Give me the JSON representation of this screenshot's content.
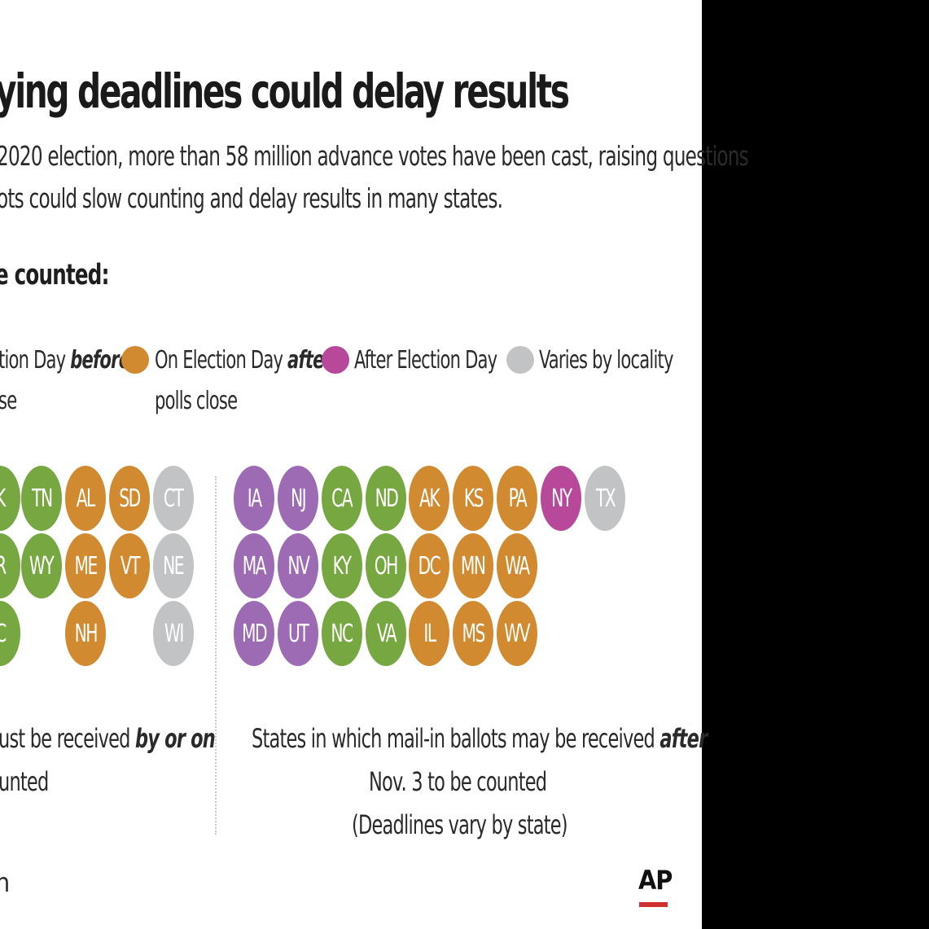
{
  "header": {
    "title": "ying deadlines could delay results",
    "subtitle_line1": "2020 election, more than 58 million advance votes have been cast, raising questions",
    "subtitle_line2": "ots could slow counting and delay results in many states.",
    "section_heading": "e counted:"
  },
  "legend": [
    {
      "line1_plain": "tion Day ",
      "line1_bold": "before",
      "line2": "se",
      "color": "#76a740"
    },
    {
      "line1_plain": "On Election Day ",
      "line1_bold": "after",
      "line2": "polls close",
      "color": "#d18a2f"
    },
    {
      "line1_plain": "After Election Day",
      "line1_bold": "",
      "line2": "",
      "color": "#b8489a"
    },
    {
      "line1_plain": "Varies by locality",
      "line1_bold": "",
      "line2": "",
      "color": "#c2c3c5"
    }
  ],
  "left_group": {
    "states": [
      "K",
      "TN",
      "AL",
      "SD",
      "CT",
      "R",
      "WY",
      "ME",
      "VT",
      "NE",
      "C",
      "NH",
      "WI"
    ],
    "caption_line1_plain": "ust be received ",
    "caption_line1_bold": "by or on",
    "caption_line2": "unted"
  },
  "right_group": {
    "states": [
      "IA",
      "NJ",
      "CA",
      "ND",
      "AK",
      "KS",
      "PA",
      "NY",
      "TX",
      "MA",
      "NV",
      "KY",
      "OH",
      "DC",
      "MN",
      "WA",
      "MD",
      "UT",
      "NC",
      "VA",
      "IL",
      "MS",
      "WV"
    ],
    "caption_line1_plain": "States in which mail-in ballots may be received ",
    "caption_line1_bold": "after",
    "caption_line2": "Nov. 3 to be counted",
    "caption_line3": "(Deadlines vary by state)"
  },
  "footer": {
    "source_fragment": "n",
    "logo": "AP",
    "logo_color": "#d0302f"
  }
}
